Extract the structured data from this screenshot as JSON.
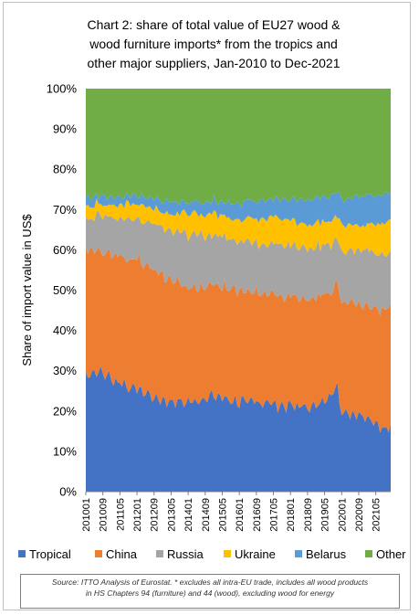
{
  "title_lines": [
    "Chart 2: share of total value of EU27 wood &",
    "wood furniture imports* from the tropics and",
    "other major suppliers, Jan-2010 to Dec-2021"
  ],
  "source_lines": [
    "Source: ITTO Analysis of Eurostat. * excludes all intra-EU trade, includes all wood products",
    "in HS Chapters 94 (furniture) and 44 (wood), excluding wood for energy"
  ],
  "colors": {
    "Tropical": "#4472c4",
    "China": "#ed7d31",
    "Russia": "#a5a5a5",
    "Ukraine": "#ffc000",
    "Belarus": "#5b9bd5",
    "Other": "#70ad47"
  },
  "chart_data": {
    "type": "area",
    "stacked": true,
    "percent": true,
    "title": "Chart 2: share of total value of EU27 wood & wood furniture imports* from the tropics and other major suppliers, Jan-2010 to Dec-2021",
    "xlabel": "",
    "ylabel": "Share of import value in US$",
    "ylim": [
      0,
      100
    ],
    "yticks": [
      "0%",
      "10%",
      "20%",
      "30%",
      "40%",
      "50%",
      "60%",
      "70%",
      "80%",
      "90%",
      "100%"
    ],
    "xticks": [
      "201001",
      "201009",
      "201105",
      "201201",
      "201209",
      "201305",
      "201401",
      "201409",
      "201505",
      "201601",
      "201609",
      "201705",
      "201801",
      "201809",
      "201905",
      "202001",
      "202009",
      "202105"
    ],
    "legend_position": "bottom",
    "grid": false,
    "x_start": "2010-01",
    "x_end": "2021-12",
    "x_step": "month",
    "series_keyframes": [
      {
        "name": "Tropical",
        "points": [
          [
            0,
            29
          ],
          [
            6,
            30
          ],
          [
            12,
            27
          ],
          [
            24,
            25
          ],
          [
            36,
            22
          ],
          [
            48,
            22
          ],
          [
            60,
            23
          ],
          [
            72,
            21
          ],
          [
            84,
            21
          ],
          [
            96,
            20
          ],
          [
            108,
            20
          ],
          [
            118,
            26
          ],
          [
            120,
            19
          ],
          [
            132,
            18
          ],
          [
            140,
            15
          ],
          [
            143,
            16
          ]
        ]
      },
      {
        "name": "China",
        "points": [
          [
            0,
            31
          ],
          [
            12,
            30
          ],
          [
            24,
            31
          ],
          [
            36,
            30
          ],
          [
            48,
            28
          ],
          [
            60,
            27
          ],
          [
            72,
            26
          ],
          [
            84,
            26
          ],
          [
            96,
            26
          ],
          [
            108,
            25
          ],
          [
            120,
            26
          ],
          [
            132,
            26
          ],
          [
            143,
            30
          ]
        ]
      },
      {
        "name": "Russia",
        "points": [
          [
            0,
            8
          ],
          [
            12,
            9
          ],
          [
            24,
            10
          ],
          [
            36,
            12
          ],
          [
            48,
            13
          ],
          [
            60,
            12
          ],
          [
            72,
            12
          ],
          [
            84,
            12
          ],
          [
            96,
            12
          ],
          [
            108,
            12
          ],
          [
            120,
            12
          ],
          [
            132,
            13
          ],
          [
            143,
            13
          ]
        ]
      },
      {
        "name": "Ukraine",
        "points": [
          [
            0,
            3
          ],
          [
            12,
            3
          ],
          [
            24,
            4
          ],
          [
            36,
            4
          ],
          [
            48,
            5
          ],
          [
            60,
            5
          ],
          [
            72,
            5
          ],
          [
            84,
            6
          ],
          [
            96,
            6
          ],
          [
            108,
            6
          ],
          [
            120,
            6
          ],
          [
            132,
            6
          ],
          [
            143,
            8
          ]
        ]
      },
      {
        "name": "Belarus",
        "points": [
          [
            0,
            2
          ],
          [
            12,
            2
          ],
          [
            24,
            2
          ],
          [
            36,
            3
          ],
          [
            48,
            3
          ],
          [
            60,
            3
          ],
          [
            72,
            4
          ],
          [
            84,
            4
          ],
          [
            96,
            5
          ],
          [
            108,
            6
          ],
          [
            120,
            6
          ],
          [
            132,
            7
          ],
          [
            143,
            7
          ]
        ]
      },
      {
        "name": "Other",
        "points": [
          [
            0,
            27
          ],
          [
            12,
            26
          ],
          [
            24,
            26
          ],
          [
            36,
            27
          ],
          [
            48,
            28
          ],
          [
            60,
            27
          ],
          [
            72,
            27
          ],
          [
            84,
            26
          ],
          [
            96,
            26
          ],
          [
            108,
            26
          ],
          [
            120,
            26
          ],
          [
            132,
            25
          ],
          [
            143,
            26
          ]
        ]
      }
    ],
    "noise": [
      {
        "name": "Tropical",
        "amplitude": 1.4
      },
      {
        "name": "China",
        "amplitude": 1.6
      },
      {
        "name": "Russia",
        "amplitude": 1.3
      },
      {
        "name": "Ukraine",
        "amplitude": 1.0
      },
      {
        "name": "Belarus",
        "amplitude": 0.8
      }
    ]
  }
}
